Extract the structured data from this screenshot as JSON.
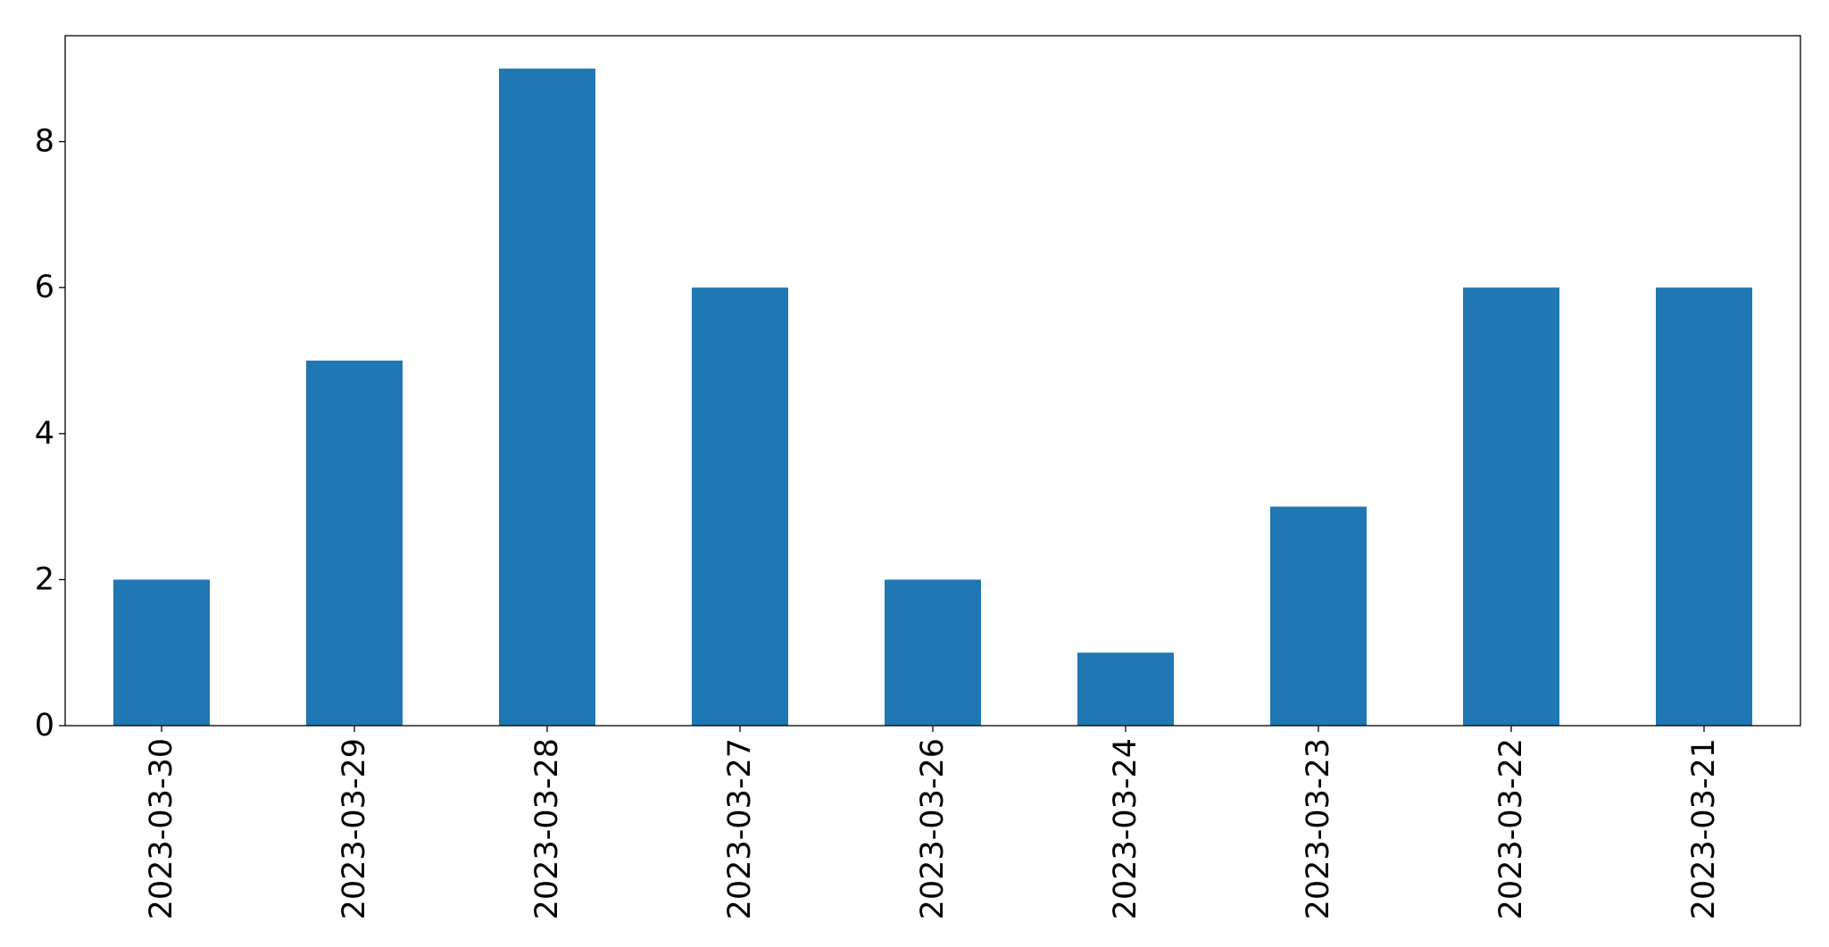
{
  "chart_data": {
    "type": "bar",
    "title": "",
    "xlabel": "",
    "ylabel": "",
    "categories": [
      "2023-03-30",
      "2023-03-29",
      "2023-03-28",
      "2023-03-27",
      "2023-03-26",
      "2023-03-24",
      "2023-03-23",
      "2023-03-22",
      "2023-03-21"
    ],
    "values": [
      2,
      5,
      9,
      6,
      2,
      1,
      3,
      6,
      6
    ],
    "ylim": [
      0,
      9.45
    ],
    "yticks": [
      0,
      2,
      4,
      6,
      8
    ],
    "ytick_labels": [
      "0",
      "2",
      "4",
      "6",
      "8"
    ],
    "grid": false,
    "legend": "none",
    "bar_color": "#1f77b4"
  }
}
